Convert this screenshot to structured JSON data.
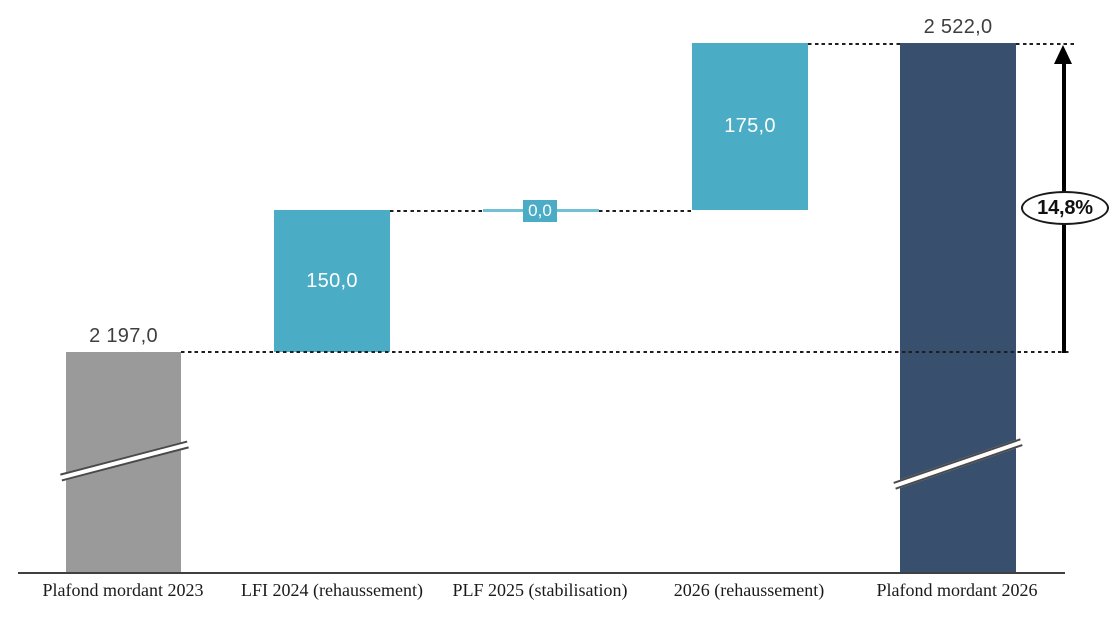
{
  "chart_data": {
    "type": "waterfall",
    "title": "",
    "categories": [
      "Plafond mordant 2023",
      "LFI 2024 (rehaussement)",
      "PLF 2025 (stabilisation)",
      "2026 (rehaussement)",
      "Plafond mordant 2026"
    ],
    "bars": [
      {
        "category": "Plafond mordant 2023",
        "role": "start-total",
        "value": 2197.0,
        "label": "2 197,0",
        "label_position": "above",
        "color": "#9a9a9a",
        "axis_break": true
      },
      {
        "category": "LFI 2024 (rehaussement)",
        "role": "increase",
        "value": 150.0,
        "label": "150,0",
        "label_position": "inside",
        "color": "#4aacc5",
        "axis_break": false
      },
      {
        "category": "PLF 2025 (stabilisation)",
        "role": "no-change",
        "value": 0.0,
        "label": "0,0",
        "label_position": "on-line",
        "color": "#4aacc5",
        "axis_break": false
      },
      {
        "category": "2026 (rehaussement)",
        "role": "increase",
        "value": 175.0,
        "label": "175,0",
        "label_position": "inside",
        "color": "#4aacc5",
        "axis_break": false
      },
      {
        "category": "Plafond mordant 2026",
        "role": "end-total",
        "value": 2522.0,
        "label": "2 522,0",
        "label_position": "above",
        "color": "#38506e",
        "axis_break": true
      }
    ],
    "annotation": {
      "label": "14,8%"
    },
    "connector_style": "dashed",
    "axis_break": true,
    "legend": "none",
    "gridlines": "off",
    "colors": {
      "increase": "#4aacc5",
      "start_total": "#9a9a9a",
      "end_total": "#38506e",
      "zero_line": "#72c0d4",
      "connector": "#1f1f1f",
      "axis": "#404040",
      "value_label_outside": "#3f3f3f",
      "value_label_inside": "#ffffff",
      "annotation_border": "#1a1a1a"
    }
  }
}
